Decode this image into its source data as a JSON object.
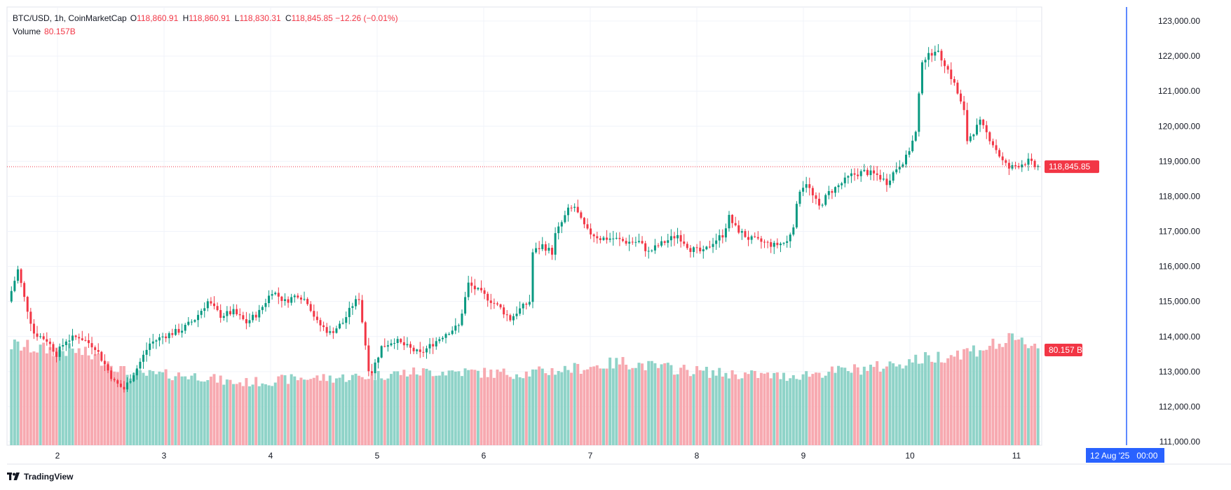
{
  "header": {
    "symbol": "BTC/USD, 1h, CoinMarketCap",
    "open_label": "O",
    "open": "118,860.91",
    "high_label": "H",
    "high": "118,860.91",
    "low_label": "L",
    "low": "118,830.31",
    "close_label": "C",
    "close": "118,845.85",
    "change": "−12.26 (−0.01%)",
    "volume_label": "Volume",
    "volume": "80.157B"
  },
  "badges": {
    "price": "118,845.85",
    "volume": "80.157 B",
    "crosshair_time": "12 Aug '25   00:00"
  },
  "brand": {
    "name": "TradingView",
    "icon": "tradingview-logo"
  },
  "colors": {
    "up": "#089981",
    "down": "#f23645",
    "up_volume": "#8fd3c8",
    "down_volume": "#f7a9b0",
    "crosshair": "#2962ff",
    "badge": "#f23645"
  },
  "chart_data": {
    "type": "candlestick",
    "interval": "1h",
    "x_tick_labels": [
      "2",
      "3",
      "4",
      "5",
      "6",
      "7",
      "8",
      "9",
      "10",
      "11"
    ],
    "y_tick_labels": [
      "111,000.00",
      "112,000.00",
      "113,000.00",
      "114,000.00",
      "115,000.00",
      "116,000.00",
      "117,000.00",
      "118,000.00",
      "119,000.00",
      "120,000.00",
      "121,000.00",
      "122,000.00",
      "123,000.00"
    ],
    "ylim": [
      110900,
      123400
    ],
    "last_price": 118845.85,
    "crosshair_time": "12 Aug '25 00:00",
    "grid": true,
    "price_anchors": [
      [
        0,
        115000
      ],
      [
        3,
        115900
      ],
      [
        5,
        115100
      ],
      [
        8,
        114100
      ],
      [
        12,
        113900
      ],
      [
        15,
        113500
      ],
      [
        18,
        113900
      ],
      [
        22,
        114000
      ],
      [
        27,
        113700
      ],
      [
        30,
        113200
      ],
      [
        33,
        112700
      ],
      [
        36,
        112500
      ],
      [
        40,
        113100
      ],
      [
        44,
        113800
      ],
      [
        48,
        114000
      ],
      [
        54,
        114200
      ],
      [
        58,
        114500
      ],
      [
        62,
        115000
      ],
      [
        66,
        114600
      ],
      [
        70,
        114700
      ],
      [
        74,
        114400
      ],
      [
        78,
        114700
      ],
      [
        82,
        115300
      ],
      [
        86,
        115000
      ],
      [
        90,
        115200
      ],
      [
        93,
        115000
      ],
      [
        96,
        114400
      ],
      [
        100,
        114100
      ],
      [
        104,
        114400
      ],
      [
        107,
        114900
      ],
      [
        109,
        115100
      ],
      [
        112,
        113100
      ],
      [
        113,
        113000
      ],
      [
        116,
        113700
      ],
      [
        120,
        113900
      ],
      [
        124,
        113700
      ],
      [
        128,
        113500
      ],
      [
        132,
        113800
      ],
      [
        136,
        114100
      ],
      [
        140,
        114300
      ],
      [
        143,
        115500
      ],
      [
        146,
        115300
      ],
      [
        149,
        115100
      ],
      [
        153,
        114800
      ],
      [
        156,
        114500
      ],
      [
        158,
        114700
      ],
      [
        162,
        115000
      ],
      [
        163,
        116400
      ],
      [
        166,
        116600
      ],
      [
        169,
        116400
      ],
      [
        170,
        116900
      ],
      [
        174,
        117600
      ],
      [
        176,
        117700
      ],
      [
        178,
        117300
      ],
      [
        180,
        117000
      ],
      [
        184,
        116800
      ],
      [
        188,
        116800
      ],
      [
        192,
        116700
      ],
      [
        196,
        116700
      ],
      [
        199,
        116400
      ],
      [
        202,
        116600
      ],
      [
        206,
        116800
      ],
      [
        208,
        116900
      ],
      [
        212,
        116500
      ],
      [
        216,
        116400
      ],
      [
        219,
        116700
      ],
      [
        222,
        116900
      ],
      [
        224,
        117400
      ],
      [
        226,
        117100
      ],
      [
        230,
        116800
      ],
      [
        234,
        116700
      ],
      [
        238,
        116600
      ],
      [
        242,
        116700
      ],
      [
        244,
        117200
      ],
      [
        246,
        118200
      ],
      [
        248,
        118400
      ],
      [
        250,
        118000
      ],
      [
        252,
        117700
      ],
      [
        255,
        118100
      ],
      [
        258,
        118300
      ],
      [
        262,
        118600
      ],
      [
        266,
        118700
      ],
      [
        270,
        118600
      ],
      [
        273,
        118400
      ],
      [
        276,
        118800
      ],
      [
        279,
        119100
      ],
      [
        282,
        119800
      ],
      [
        284,
        121900
      ],
      [
        286,
        122000
      ],
      [
        288,
        122200
      ],
      [
        291,
        121800
      ],
      [
        294,
        121200
      ],
      [
        297,
        120400
      ],
      [
        298,
        119600
      ],
      [
        302,
        120100
      ],
      [
        306,
        119500
      ],
      [
        309,
        119000
      ],
      [
        311,
        118800
      ],
      [
        314,
        118900
      ],
      [
        317,
        119000
      ],
      [
        319,
        118850
      ]
    ],
    "volume_anchors": [
      [
        0,
        125
      ],
      [
        10,
        120
      ],
      [
        20,
        118
      ],
      [
        30,
        105
      ],
      [
        36,
        90
      ],
      [
        40,
        88
      ],
      [
        50,
        88
      ],
      [
        60,
        86
      ],
      [
        66,
        80
      ],
      [
        70,
        78
      ],
      [
        80,
        80
      ],
      [
        90,
        84
      ],
      [
        100,
        84
      ],
      [
        110,
        86
      ],
      [
        120,
        90
      ],
      [
        130,
        92
      ],
      [
        140,
        92
      ],
      [
        150,
        90
      ],
      [
        160,
        90
      ],
      [
        170,
        94
      ],
      [
        180,
        98
      ],
      [
        190,
        104
      ],
      [
        200,
        98
      ],
      [
        210,
        94
      ],
      [
        220,
        90
      ],
      [
        230,
        88
      ],
      [
        240,
        86
      ],
      [
        250,
        90
      ],
      [
        260,
        94
      ],
      [
        270,
        98
      ],
      [
        280,
        106
      ],
      [
        290,
        112
      ],
      [
        300,
        120
      ],
      [
        310,
        130
      ],
      [
        319,
        126
      ]
    ],
    "volume_unit": "B (relative scale)"
  }
}
